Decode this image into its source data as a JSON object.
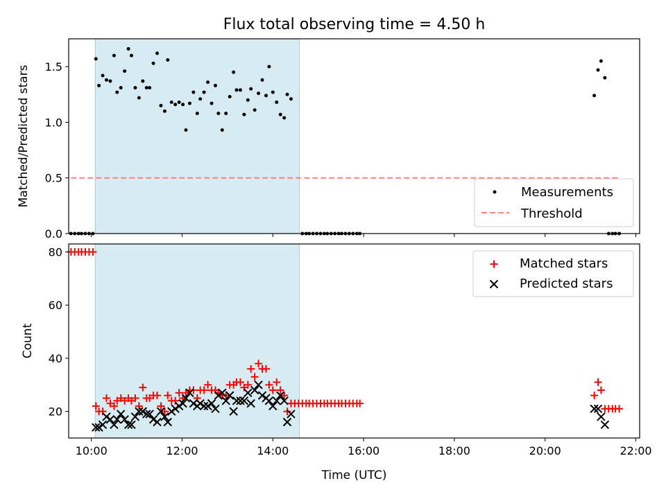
{
  "chart_data": [
    {
      "type": "scatter",
      "panel": "top",
      "title": "Flux total observing time = 4.50 h",
      "ylabel": "Matched/Predicted stars",
      "xlim": [
        "09:30",
        "22:05"
      ],
      "ylim": [
        0,
        1.75
      ],
      "yticks": [
        "0.0",
        "0.5",
        "1.0",
        "1.5"
      ],
      "grid": false,
      "legend_position": "lower-right",
      "shaded_interval": [
        "10:05",
        "14:35"
      ],
      "series": [
        {
          "name": "Measurements",
          "marker": "dot",
          "color": "#000000",
          "points": [
            [
              "09:33",
              0
            ],
            [
              "09:38",
              0
            ],
            [
              "09:43",
              0
            ],
            [
              "09:47",
              0
            ],
            [
              "09:52",
              0
            ],
            [
              "09:57",
              0
            ],
            [
              "10:02",
              0
            ],
            [
              "10:06",
              1.57
            ],
            [
              "10:10",
              1.33
            ],
            [
              "10:15",
              1.42
            ],
            [
              "10:20",
              1.38
            ],
            [
              "10:25",
              1.37
            ],
            [
              "10:30",
              1.6
            ],
            [
              "10:34",
              1.27
            ],
            [
              "10:39",
              1.31
            ],
            [
              "10:44",
              1.46
            ],
            [
              "10:49",
              1.66
            ],
            [
              "10:53",
              1.6
            ],
            [
              "10:58",
              1.31
            ],
            [
              "11:03",
              1.22
            ],
            [
              "11:08",
              1.37
            ],
            [
              "11:13",
              1.31
            ],
            [
              "11:17",
              1.31
            ],
            [
              "11:22",
              1.53
            ],
            [
              "11:27",
              1.62
            ],
            [
              "11:32",
              1.15
            ],
            [
              "11:37",
              1.1
            ],
            [
              "11:41",
              1.56
            ],
            [
              "11:46",
              1.18
            ],
            [
              "11:51",
              1.16
            ],
            [
              "11:56",
              1.18
            ],
            [
              "12:01",
              1.16
            ],
            [
              "12:05",
              0.93
            ],
            [
              "12:10",
              1.17
            ],
            [
              "12:15",
              1.27
            ],
            [
              "12:20",
              1.08
            ],
            [
              "12:24",
              1.21
            ],
            [
              "12:29",
              1.27
            ],
            [
              "12:34",
              1.36
            ],
            [
              "12:39",
              1.17
            ],
            [
              "12:44",
              1.33
            ],
            [
              "12:48",
              1.08
            ],
            [
              "12:53",
              0.93
            ],
            [
              "12:58",
              1.08
            ],
            [
              "13:03",
              1.23
            ],
            [
              "13:08",
              1.45
            ],
            [
              "13:12",
              1.29
            ],
            [
              "13:17",
              1.29
            ],
            [
              "13:22",
              1.07
            ],
            [
              "13:27",
              1.2
            ],
            [
              "13:31",
              1.3
            ],
            [
              "13:36",
              1.11
            ],
            [
              "13:41",
              1.26
            ],
            [
              "13:46",
              1.38
            ],
            [
              "13:51",
              1.24
            ],
            [
              "13:55",
              1.5
            ],
            [
              "14:00",
              1.27
            ],
            [
              "14:05",
              1.18
            ],
            [
              "14:10",
              1.07
            ],
            [
              "14:15",
              1.04
            ],
            [
              "14:19",
              1.25
            ],
            [
              "14:24",
              1.21
            ],
            [
              "14:39",
              0
            ],
            [
              "14:44",
              0
            ],
            [
              "14:48",
              0
            ],
            [
              "14:53",
              0
            ],
            [
              "14:58",
              0
            ],
            [
              "15:03",
              0
            ],
            [
              "15:08",
              0
            ],
            [
              "15:12",
              0
            ],
            [
              "15:17",
              0
            ],
            [
              "15:22",
              0
            ],
            [
              "15:27",
              0
            ],
            [
              "15:31",
              0
            ],
            [
              "15:36",
              0
            ],
            [
              "15:41",
              0
            ],
            [
              "15:46",
              0
            ],
            [
              "15:51",
              0
            ],
            [
              "15:55",
              0
            ],
            [
              "21:05",
              1.24
            ],
            [
              "21:10",
              1.47
            ],
            [
              "21:14",
              1.55
            ],
            [
              "21:19",
              1.4
            ],
            [
              "21:24",
              0
            ],
            [
              "21:29",
              0
            ],
            [
              "21:33",
              0
            ],
            [
              "21:38",
              0
            ]
          ]
        },
        {
          "name": "Threshold",
          "type": "line",
          "style": "dashed",
          "color": "#ff7f7f",
          "points": [
            [
              "09:33",
              0.5
            ],
            [
              "21:38",
              0.5
            ]
          ]
        }
      ]
    },
    {
      "type": "scatter",
      "panel": "bottom",
      "xlabel": "Time (UTC)",
      "ylabel": "Count",
      "xlim": [
        "09:30",
        "22:05"
      ],
      "ylim": [
        10,
        83
      ],
      "xticks": [
        "10:00",
        "12:00",
        "14:00",
        "16:00",
        "18:00",
        "20:00",
        "22:00"
      ],
      "yticks": [
        "20",
        "40",
        "60",
        "80"
      ],
      "grid": false,
      "legend_position": "upper-right",
      "shaded_interval": [
        "10:05",
        "14:35"
      ],
      "series": [
        {
          "name": "Matched stars",
          "marker": "plus",
          "color": "#ff0000",
          "points": [
            [
              "09:33",
              80
            ],
            [
              "09:38",
              80
            ],
            [
              "09:43",
              80
            ],
            [
              "09:47",
              80
            ],
            [
              "09:52",
              80
            ],
            [
              "09:57",
              80
            ],
            [
              "10:02",
              80
            ],
            [
              "10:06",
              22
            ],
            [
              "10:10",
              20
            ],
            [
              "10:15",
              20
            ],
            [
              "10:20",
              25
            ],
            [
              "10:25",
              23
            ],
            [
              "10:30",
              22
            ],
            [
              "10:34",
              24
            ],
            [
              "10:39",
              25
            ],
            [
              "10:44",
              24
            ],
            [
              "10:49",
              25
            ],
            [
              "10:53",
              24
            ],
            [
              "10:58",
              25
            ],
            [
              "11:03",
              22
            ],
            [
              "11:08",
              29
            ],
            [
              "11:13",
              25
            ],
            [
              "11:17",
              25
            ],
            [
              "11:22",
              26
            ],
            [
              "11:27",
              26
            ],
            [
              "11:32",
              22
            ],
            [
              "11:37",
              20
            ],
            [
              "11:41",
              26
            ],
            [
              "11:46",
              24
            ],
            [
              "11:51",
              24
            ],
            [
              "11:56",
              27
            ],
            [
              "12:01",
              25
            ],
            [
              "12:05",
              27
            ],
            [
              "12:10",
              28
            ],
            [
              "12:15",
              28
            ],
            [
              "12:20",
              25
            ],
            [
              "12:24",
              28
            ],
            [
              "12:29",
              28
            ],
            [
              "12:34",
              30
            ],
            [
              "12:39",
              28
            ],
            [
              "12:44",
              28
            ],
            [
              "12:48",
              27
            ],
            [
              "12:53",
              26
            ],
            [
              "12:58",
              26
            ],
            [
              "13:03",
              30
            ],
            [
              "13:08",
              30
            ],
            [
              "13:12",
              31
            ],
            [
              "13:17",
              31
            ],
            [
              "13:22",
              29
            ],
            [
              "13:27",
              30
            ],
            [
              "13:31",
              36
            ],
            [
              "13:36",
              33
            ],
            [
              "13:41",
              38
            ],
            [
              "13:46",
              36
            ],
            [
              "13:51",
              36
            ],
            [
              "13:55",
              30
            ],
            [
              "14:00",
              28
            ],
            [
              "14:05",
              31
            ],
            [
              "14:10",
              28
            ],
            [
              "14:15",
              26
            ],
            [
              "14:19",
              20
            ],
            [
              "14:24",
              23
            ],
            [
              "14:29",
              23
            ],
            [
              "14:34",
              23
            ],
            [
              "14:39",
              23
            ],
            [
              "14:44",
              23
            ],
            [
              "14:48",
              23
            ],
            [
              "14:53",
              23
            ],
            [
              "14:58",
              23
            ],
            [
              "15:03",
              23
            ],
            [
              "15:08",
              23
            ],
            [
              "15:12",
              23
            ],
            [
              "15:17",
              23
            ],
            [
              "15:22",
              23
            ],
            [
              "15:27",
              23
            ],
            [
              "15:31",
              23
            ],
            [
              "15:36",
              23
            ],
            [
              "15:41",
              23
            ],
            [
              "15:46",
              23
            ],
            [
              "15:51",
              23
            ],
            [
              "15:55",
              23
            ],
            [
              "21:05",
              26
            ],
            [
              "21:10",
              31
            ],
            [
              "21:14",
              28
            ],
            [
              "21:19",
              21
            ],
            [
              "21:24",
              21
            ],
            [
              "21:29",
              21
            ],
            [
              "21:33",
              21
            ],
            [
              "21:38",
              21
            ]
          ]
        },
        {
          "name": "Predicted stars",
          "marker": "x",
          "color": "#000000",
          "points": [
            [
              "10:06",
              14
            ],
            [
              "10:10",
              14
            ],
            [
              "10:15",
              15
            ],
            [
              "10:20",
              18
            ],
            [
              "10:25",
              17
            ],
            [
              "10:30",
              15
            ],
            [
              "10:34",
              17
            ],
            [
              "10:39",
              19
            ],
            [
              "10:44",
              17
            ],
            [
              "10:49",
              15
            ],
            [
              "10:53",
              15
            ],
            [
              "10:58",
              18
            ],
            [
              "11:03",
              20
            ],
            [
              "11:08",
              20
            ],
            [
              "11:13",
              19
            ],
            [
              "11:17",
              19
            ],
            [
              "11:22",
              17
            ],
            [
              "11:27",
              16
            ],
            [
              "11:32",
              20
            ],
            [
              "11:37",
              18
            ],
            [
              "11:41",
              16
            ],
            [
              "11:46",
              20
            ],
            [
              "11:51",
              21
            ],
            [
              "11:56",
              22
            ],
            [
              "12:01",
              23
            ],
            [
              "12:05",
              25
            ],
            [
              "12:10",
              27
            ],
            [
              "12:15",
              23
            ],
            [
              "12:20",
              22
            ],
            [
              "12:24",
              23
            ],
            [
              "12:29",
              22
            ],
            [
              "12:34",
              22
            ],
            [
              "12:39",
              23
            ],
            [
              "12:44",
              21
            ],
            [
              "12:48",
              26
            ],
            [
              "12:53",
              27
            ],
            [
              "12:58",
              24
            ],
            [
              "13:03",
              26
            ],
            [
              "13:08",
              20
            ],
            [
              "13:12",
              24
            ],
            [
              "13:17",
              24
            ],
            [
              "13:22",
              24
            ],
            [
              "13:27",
              27
            ],
            [
              "13:31",
              23
            ],
            [
              "13:36",
              28
            ],
            [
              "13:41",
              30
            ],
            [
              "13:46",
              26
            ],
            [
              "13:51",
              25
            ],
            [
              "13:55",
              24
            ],
            [
              "14:00",
              22
            ],
            [
              "14:05",
              24
            ],
            [
              "14:10",
              26
            ],
            [
              "14:15",
              24
            ],
            [
              "14:19",
              16
            ],
            [
              "14:24",
              19
            ],
            [
              "21:05",
              21
            ],
            [
              "21:10",
              21
            ],
            [
              "21:14",
              18
            ],
            [
              "21:19",
              15
            ]
          ]
        }
      ]
    }
  ]
}
